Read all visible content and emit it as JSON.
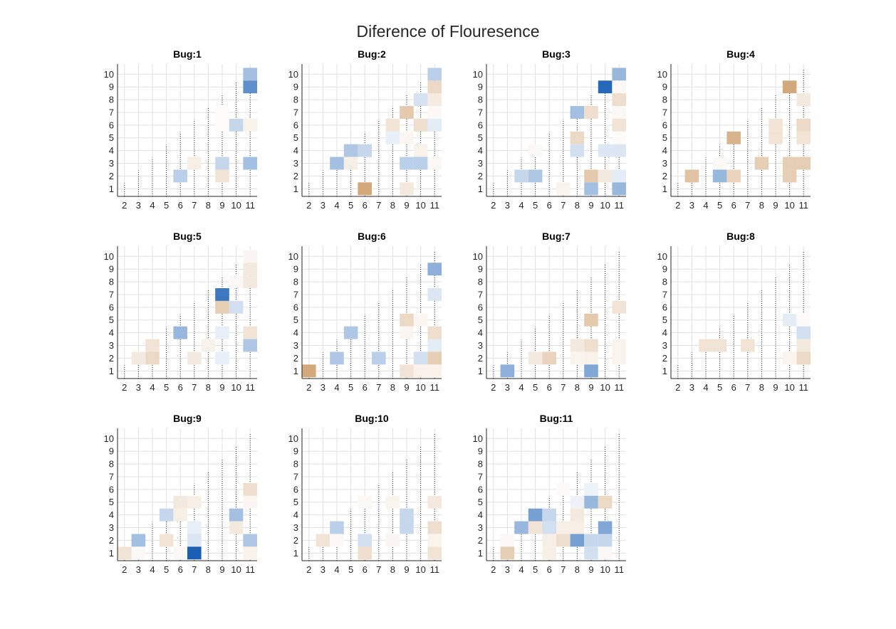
{
  "figure": {
    "title": "Diference of Flouresence"
  },
  "chart_data": {
    "type": "heatmap",
    "title": "Diference of Flouresence",
    "x_ticks": [
      "2",
      "3",
      "4",
      "5",
      "6",
      "7",
      "8",
      "9",
      "10",
      "11"
    ],
    "y_ticks": [
      "1",
      "2",
      "3",
      "4",
      "5",
      "6",
      "7",
      "8",
      "9",
      "10"
    ],
    "xlim": [
      1.5,
      11.5
    ],
    "ylim": [
      0.4,
      10.8
    ],
    "grid": true,
    "value_scale": "diverging: negative = blue, positive = tan/brown, magnitude 0-1",
    "colors": {
      "negative": "#1a5fb4",
      "positive": "#c8925a",
      "neutral": "#ffffff"
    },
    "panels": [
      {
        "title": "Bug:1",
        "cells": [
          {
            "x": 11,
            "y": 10,
            "v": -0.4
          },
          {
            "x": 11,
            "y": 9,
            "v": -0.7
          },
          {
            "x": 9,
            "y": 7,
            "v": 0.03
          },
          {
            "x": 9,
            "y": 6,
            "v": 0.03
          },
          {
            "x": 10,
            "y": 6,
            "v": -0.25
          },
          {
            "x": 11,
            "y": 6,
            "v": 0.12
          },
          {
            "x": 7,
            "y": 3,
            "v": 0.15
          },
          {
            "x": 9,
            "y": 3,
            "v": -0.25
          },
          {
            "x": 11,
            "y": 3,
            "v": -0.4
          },
          {
            "x": 6,
            "y": 2,
            "v": -0.3
          },
          {
            "x": 9,
            "y": 2,
            "v": 0.25
          }
        ]
      },
      {
        "title": "Bug:2",
        "cells": [
          {
            "x": 11,
            "y": 10,
            "v": -0.3
          },
          {
            "x": 11,
            "y": 9,
            "v": 0.35
          },
          {
            "x": 10,
            "y": 8,
            "v": -0.18
          },
          {
            "x": 11,
            "y": 8,
            "v": 0.18
          },
          {
            "x": 9,
            "y": 7,
            "v": 0.5
          },
          {
            "x": 11,
            "y": 7,
            "v": 0.06
          },
          {
            "x": 8,
            "y": 6,
            "v": 0.25
          },
          {
            "x": 10,
            "y": 6,
            "v": 0.3
          },
          {
            "x": 11,
            "y": 6,
            "v": -0.12
          },
          {
            "x": 8,
            "y": 5,
            "v": -0.1
          },
          {
            "x": 9,
            "y": 5,
            "v": 0.08
          },
          {
            "x": 5,
            "y": 4,
            "v": -0.35
          },
          {
            "x": 6,
            "y": 4,
            "v": -0.25
          },
          {
            "x": 10,
            "y": 4,
            "v": 0.12
          },
          {
            "x": 4,
            "y": 3,
            "v": -0.4
          },
          {
            "x": 5,
            "y": 3,
            "v": 0.15
          },
          {
            "x": 9,
            "y": 3,
            "v": -0.3
          },
          {
            "x": 10,
            "y": 3,
            "v": -0.3
          },
          {
            "x": 11,
            "y": 3,
            "v": 0.06
          },
          {
            "x": 6,
            "y": 1,
            "v": 0.8
          },
          {
            "x": 9,
            "y": 1,
            "v": 0.2
          }
        ]
      },
      {
        "title": "Bug:3",
        "cells": [
          {
            "x": 11,
            "y": 10,
            "v": -0.45
          },
          {
            "x": 10,
            "y": 9,
            "v": -0.95
          },
          {
            "x": 11,
            "y": 9,
            "v": 0.06
          },
          {
            "x": 11,
            "y": 8,
            "v": 0.3
          },
          {
            "x": 8,
            "y": 7,
            "v": -0.4
          },
          {
            "x": 9,
            "y": 7,
            "v": 0.3
          },
          {
            "x": 11,
            "y": 7,
            "v": 0.06
          },
          {
            "x": 11,
            "y": 6,
            "v": 0.25
          },
          {
            "x": 8,
            "y": 5,
            "v": 0.35
          },
          {
            "x": 11,
            "y": 5,
            "v": 0.04
          },
          {
            "x": 5,
            "y": 4,
            "v": 0.06
          },
          {
            "x": 8,
            "y": 4,
            "v": -0.2
          },
          {
            "x": 10,
            "y": 4,
            "v": -0.15
          },
          {
            "x": 11,
            "y": 4,
            "v": -0.15
          },
          {
            "x": 4,
            "y": 2,
            "v": -0.25
          },
          {
            "x": 5,
            "y": 2,
            "v": -0.35
          },
          {
            "x": 9,
            "y": 2,
            "v": 0.5
          },
          {
            "x": 10,
            "y": 2,
            "v": 0.2
          },
          {
            "x": 11,
            "y": 2,
            "v": -0.12
          },
          {
            "x": 7,
            "y": 1,
            "v": 0.1
          },
          {
            "x": 9,
            "y": 1,
            "v": -0.4
          },
          {
            "x": 11,
            "y": 1,
            "v": -0.45
          }
        ]
      },
      {
        "title": "Bug:4",
        "cells": [
          {
            "x": 10,
            "y": 9,
            "v": 0.8
          },
          {
            "x": 11,
            "y": 8,
            "v": 0.2
          },
          {
            "x": 9,
            "y": 6,
            "v": 0.25
          },
          {
            "x": 11,
            "y": 6,
            "v": 0.35
          },
          {
            "x": 6,
            "y": 5,
            "v": 0.7
          },
          {
            "x": 9,
            "y": 5,
            "v": 0.25
          },
          {
            "x": 11,
            "y": 5,
            "v": 0.25
          },
          {
            "x": 5,
            "y": 3,
            "v": 0.06
          },
          {
            "x": 8,
            "y": 3,
            "v": 0.45
          },
          {
            "x": 10,
            "y": 3,
            "v": 0.45
          },
          {
            "x": 11,
            "y": 3,
            "v": 0.45
          },
          {
            "x": 3,
            "y": 2,
            "v": 0.55
          },
          {
            "x": 5,
            "y": 2,
            "v": -0.45
          },
          {
            "x": 6,
            "y": 2,
            "v": 0.4
          },
          {
            "x": 10,
            "y": 2,
            "v": 0.45
          }
        ]
      },
      {
        "title": "Bug:5",
        "cells": [
          {
            "x": 11,
            "y": 10,
            "v": 0.08
          },
          {
            "x": 11,
            "y": 9,
            "v": 0.2
          },
          {
            "x": 10,
            "y": 8,
            "v": 0.06
          },
          {
            "x": 11,
            "y": 8,
            "v": 0.2
          },
          {
            "x": 9,
            "y": 7,
            "v": -0.85
          },
          {
            "x": 9,
            "y": 6,
            "v": 0.45
          },
          {
            "x": 10,
            "y": 6,
            "v": -0.2
          },
          {
            "x": 6,
            "y": 4,
            "v": -0.45
          },
          {
            "x": 9,
            "y": 4,
            "v": -0.1
          },
          {
            "x": 11,
            "y": 4,
            "v": 0.25
          },
          {
            "x": 4,
            "y": 3,
            "v": 0.25
          },
          {
            "x": 8,
            "y": 3,
            "v": 0.12
          },
          {
            "x": 11,
            "y": 3,
            "v": -0.35
          },
          {
            "x": 3,
            "y": 2,
            "v": 0.2
          },
          {
            "x": 4,
            "y": 2,
            "v": 0.35
          },
          {
            "x": 7,
            "y": 2,
            "v": 0.2
          },
          {
            "x": 9,
            "y": 2,
            "v": -0.1
          }
        ]
      },
      {
        "title": "Bug:6",
        "cells": [
          {
            "x": 11,
            "y": 9,
            "v": -0.5
          },
          {
            "x": 11,
            "y": 7,
            "v": -0.15
          },
          {
            "x": 9,
            "y": 5,
            "v": 0.35
          },
          {
            "x": 10,
            "y": 5,
            "v": 0.08
          },
          {
            "x": 5,
            "y": 4,
            "v": -0.35
          },
          {
            "x": 9,
            "y": 4,
            "v": 0.08
          },
          {
            "x": 11,
            "y": 4,
            "v": 0.3
          },
          {
            "x": 11,
            "y": 3,
            "v": -0.12
          },
          {
            "x": 4,
            "y": 2,
            "v": -0.35
          },
          {
            "x": 7,
            "y": 2,
            "v": -0.3
          },
          {
            "x": 10,
            "y": 2,
            "v": -0.2
          },
          {
            "x": 11,
            "y": 2,
            "v": 0.45
          },
          {
            "x": 2,
            "y": 1,
            "v": 0.8
          },
          {
            "x": 9,
            "y": 1,
            "v": 0.25
          },
          {
            "x": 10,
            "y": 1,
            "v": 0.12
          },
          {
            "x": 11,
            "y": 1,
            "v": 0.12
          }
        ]
      },
      {
        "title": "Bug:7",
        "cells": [
          {
            "x": 11,
            "y": 6,
            "v": 0.25
          },
          {
            "x": 9,
            "y": 5,
            "v": 0.5
          },
          {
            "x": 8,
            "y": 3,
            "v": 0.2
          },
          {
            "x": 9,
            "y": 3,
            "v": 0.3
          },
          {
            "x": 11,
            "y": 3,
            "v": 0.1
          },
          {
            "x": 5,
            "y": 2,
            "v": 0.2
          },
          {
            "x": 6,
            "y": 2,
            "v": 0.4
          },
          {
            "x": 8,
            "y": 2,
            "v": 0.1
          },
          {
            "x": 9,
            "y": 2,
            "v": 0.12
          },
          {
            "x": 11,
            "y": 2,
            "v": 0.1
          },
          {
            "x": 3,
            "y": 1,
            "v": -0.5
          },
          {
            "x": 9,
            "y": 1,
            "v": -0.55
          }
        ]
      },
      {
        "title": "Bug:8",
        "cells": [
          {
            "x": 10,
            "y": 5,
            "v": -0.12
          },
          {
            "x": 11,
            "y": 5,
            "v": 0.04
          },
          {
            "x": 11,
            "y": 4,
            "v": -0.2
          },
          {
            "x": 4,
            "y": 3,
            "v": 0.25
          },
          {
            "x": 5,
            "y": 3,
            "v": 0.25
          },
          {
            "x": 7,
            "y": 3,
            "v": 0.25
          },
          {
            "x": 11,
            "y": 3,
            "v": 0.2
          },
          {
            "x": 10,
            "y": 2,
            "v": 0.1
          },
          {
            "x": 11,
            "y": 2,
            "v": 0.35
          }
        ]
      },
      {
        "title": "Bug:9",
        "cells": [
          {
            "x": 11,
            "y": 6,
            "v": 0.3
          },
          {
            "x": 6,
            "y": 5,
            "v": 0.2
          },
          {
            "x": 7,
            "y": 5,
            "v": 0.15
          },
          {
            "x": 11,
            "y": 5,
            "v": 0.08
          },
          {
            "x": 5,
            "y": 4,
            "v": -0.25
          },
          {
            "x": 6,
            "y": 4,
            "v": 0.15
          },
          {
            "x": 10,
            "y": 4,
            "v": -0.4
          },
          {
            "x": 7,
            "y": 3,
            "v": -0.1
          },
          {
            "x": 10,
            "y": 3,
            "v": 0.2
          },
          {
            "x": 3,
            "y": 2,
            "v": -0.4
          },
          {
            "x": 5,
            "y": 2,
            "v": 0.25
          },
          {
            "x": 7,
            "y": 2,
            "v": -0.15
          },
          {
            "x": 11,
            "y": 2,
            "v": -0.35
          },
          {
            "x": 2,
            "y": 1,
            "v": 0.25
          },
          {
            "x": 3,
            "y": 1,
            "v": 0.06
          },
          {
            "x": 6,
            "y": 1,
            "v": 0.06
          },
          {
            "x": 7,
            "y": 1,
            "v": -1.0
          },
          {
            "x": 11,
            "y": 1,
            "v": 0.12
          }
        ]
      },
      {
        "title": "Bug:10",
        "cells": [
          {
            "x": 6,
            "y": 5,
            "v": 0.06
          },
          {
            "x": 8,
            "y": 5,
            "v": 0.1
          },
          {
            "x": 11,
            "y": 5,
            "v": 0.2
          },
          {
            "x": 9,
            "y": 4,
            "v": -0.25
          },
          {
            "x": 4,
            "y": 3,
            "v": -0.3
          },
          {
            "x": 9,
            "y": 3,
            "v": -0.25
          },
          {
            "x": 11,
            "y": 3,
            "v": 0.3
          },
          {
            "x": 3,
            "y": 2,
            "v": 0.25
          },
          {
            "x": 4,
            "y": 2,
            "v": 0.06
          },
          {
            "x": 6,
            "y": 2,
            "v": -0.2
          },
          {
            "x": 8,
            "y": 2,
            "v": 0.08
          },
          {
            "x": 11,
            "y": 2,
            "v": 0.1
          },
          {
            "x": 6,
            "y": 1,
            "v": 0.3
          },
          {
            "x": 11,
            "y": 1,
            "v": 0.25
          }
        ]
      },
      {
        "title": "Bug:11",
        "cells": [
          {
            "x": 7,
            "y": 6,
            "v": 0.04
          },
          {
            "x": 9,
            "y": 6,
            "v": -0.08
          },
          {
            "x": 9,
            "y": 5,
            "v": -0.45
          },
          {
            "x": 10,
            "y": 5,
            "v": 0.35
          },
          {
            "x": 8,
            "y": 5,
            "v": -0.08
          },
          {
            "x": 5,
            "y": 4,
            "v": -0.6
          },
          {
            "x": 6,
            "y": 4,
            "v": -0.25
          },
          {
            "x": 8,
            "y": 4,
            "v": 0.2
          },
          {
            "x": 4,
            "y": 3,
            "v": -0.45
          },
          {
            "x": 5,
            "y": 3,
            "v": 0.25
          },
          {
            "x": 6,
            "y": 3,
            "v": -0.2
          },
          {
            "x": 7,
            "y": 3,
            "v": 0.15
          },
          {
            "x": 8,
            "y": 3,
            "v": 0.15
          },
          {
            "x": 10,
            "y": 3,
            "v": -0.55
          },
          {
            "x": 3,
            "y": 2,
            "v": 0.06
          },
          {
            "x": 6,
            "y": 2,
            "v": 0.15
          },
          {
            "x": 7,
            "y": 2,
            "v": 0.3
          },
          {
            "x": 8,
            "y": 2,
            "v": -0.6
          },
          {
            "x": 9,
            "y": 2,
            "v": -0.25
          },
          {
            "x": 10,
            "y": 2,
            "v": -0.25
          },
          {
            "x": 3,
            "y": 1,
            "v": 0.45
          },
          {
            "x": 6,
            "y": 1,
            "v": 0.15
          },
          {
            "x": 9,
            "y": 1,
            "v": -0.2
          },
          {
            "x": 10,
            "y": 1,
            "v": 0.06
          }
        ]
      }
    ]
  }
}
